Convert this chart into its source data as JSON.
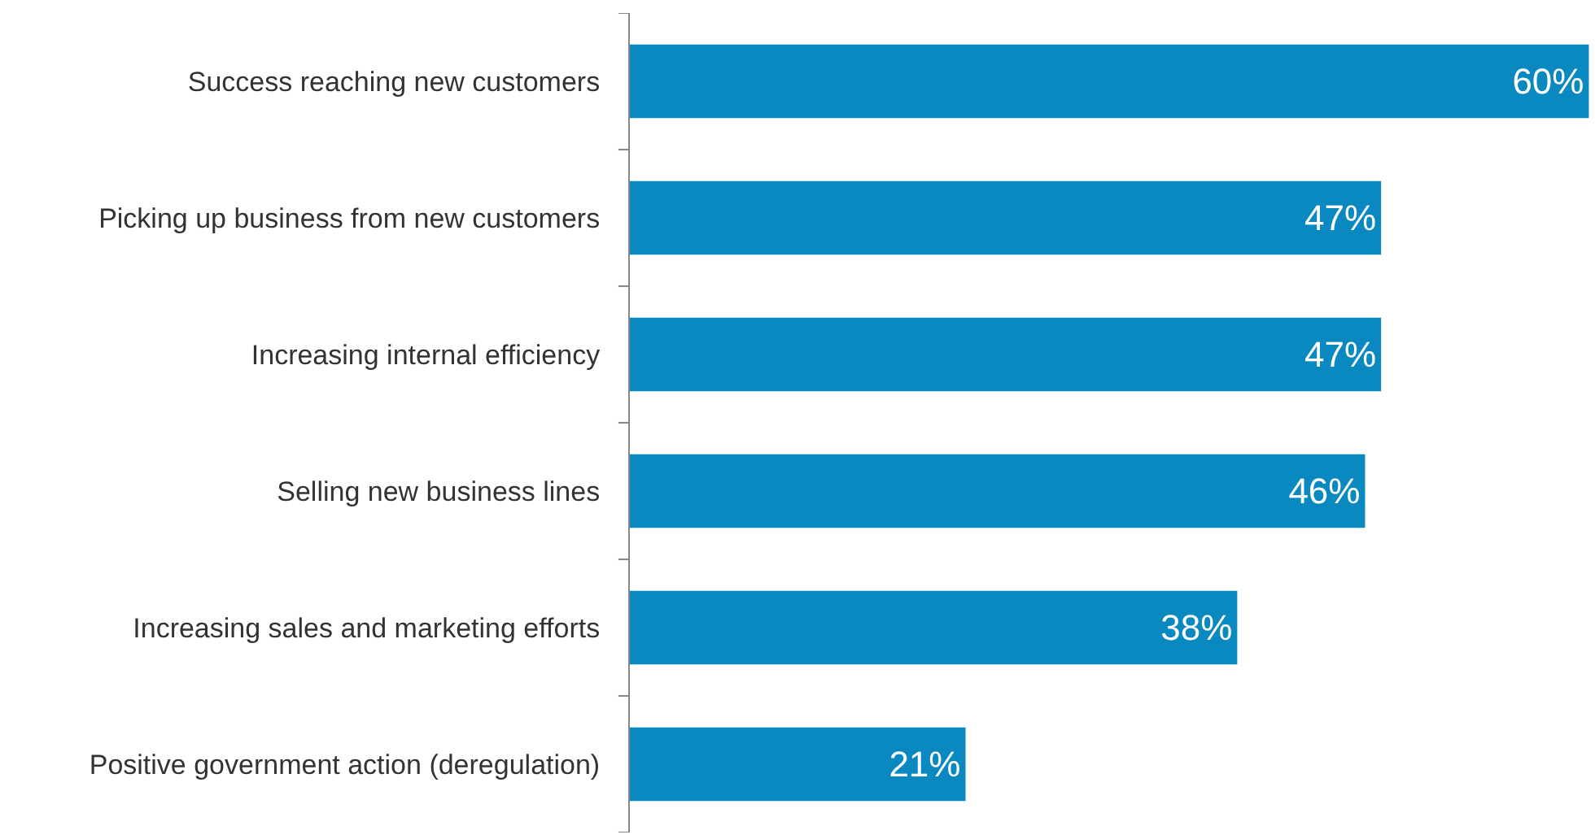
{
  "chart_data": {
    "type": "bar",
    "orientation": "horizontal",
    "categories": [
      "Success reaching new customers",
      "Picking up business from new customers",
      "Increasing internal efficiency",
      "Selling new business lines",
      "Increasing sales and marketing efforts",
      "Positive government action (deregulation)"
    ],
    "values": [
      60,
      47,
      47,
      46,
      38,
      21
    ],
    "color": "#0a88c0",
    "data_labels": true,
    "value_labels": [
      "60%",
      "47%",
      "47%",
      "46%",
      "38%",
      "21%"
    ]
  }
}
